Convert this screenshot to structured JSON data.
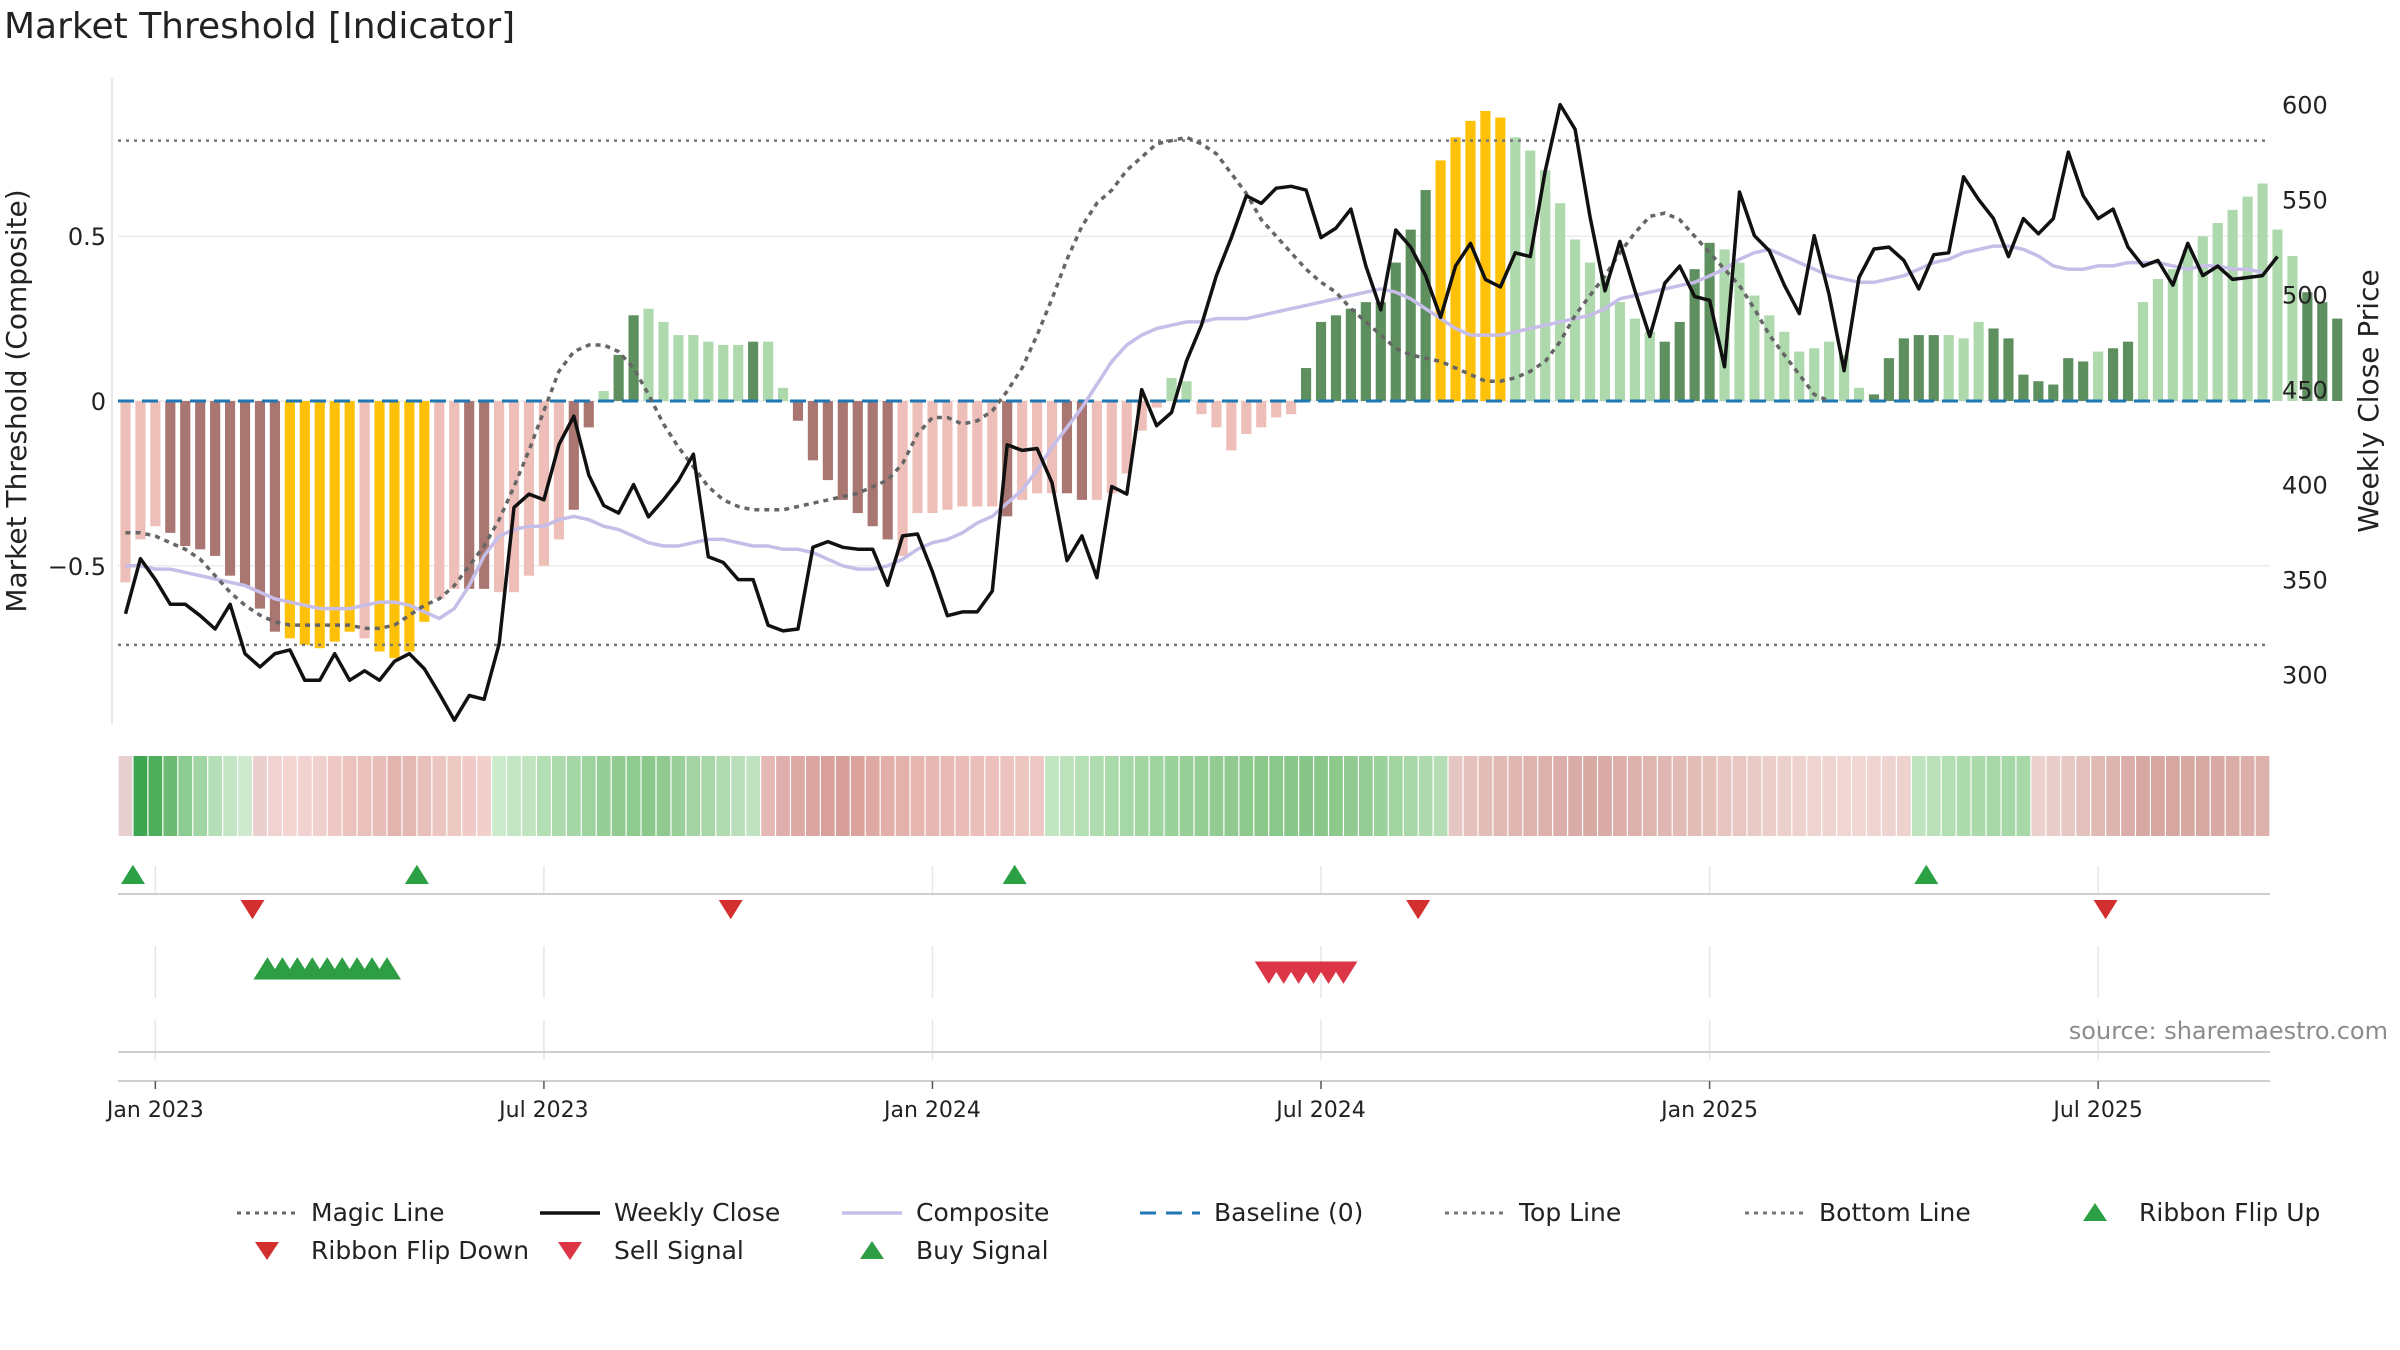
{
  "title": "Market Threshold [Indicator]",
  "source": "source: sharemaestro.com",
  "colors": {
    "bar_pos_dark": "#5e8f5e",
    "bar_pos_light": "#add9ad",
    "bar_neg_dark": "#a97671",
    "bar_neg_light": "#eebfb8",
    "bar_extreme": "#ffc107",
    "close": "#111111",
    "composite": "#c6bde8",
    "magic": "#666666",
    "baseline": "#1f77b4",
    "refline": "#777777",
    "flip_up": "#2ca045",
    "flip_down": "#d32f2f",
    "sell": "#dc3545",
    "buy": "#2e9e44"
  },
  "chart_data": {
    "type": "bar",
    "title": "Market Threshold [Indicator]",
    "ylabel": "Market Threshold (Composite)",
    "y2label": "Weekly Close Price",
    "ylim": [
      -0.98,
      0.98
    ],
    "y2lim": [
      274,
      614
    ],
    "yticks": [
      {
        "v": 0.5,
        "label": "0.5"
      },
      {
        "v": 0,
        "label": "0"
      },
      {
        "v": -0.5,
        "label": "−0.5"
      }
    ],
    "y2ticks": [
      300,
      350,
      400,
      450,
      500,
      550,
      600
    ],
    "top_line": 0.79,
    "bottom_line": -0.74,
    "xtick_labels": [
      {
        "w": 2,
        "label": "Jan 2023"
      },
      {
        "w": 28,
        "label": "Jul 2023"
      },
      {
        "w": 54,
        "label": "Jan 2024"
      },
      {
        "w": 80,
        "label": "Jul 2024"
      },
      {
        "w": 106,
        "label": "Jan 2025"
      },
      {
        "w": 132,
        "label": "Jul 2025"
      }
    ],
    "weeks": 144,
    "composite_bars": [
      -0.55,
      -0.42,
      -0.38,
      -0.4,
      -0.44,
      -0.45,
      -0.47,
      -0.53,
      -0.56,
      -0.63,
      -0.7,
      -0.72,
      -0.74,
      -0.75,
      -0.73,
      -0.7,
      -0.72,
      -0.76,
      -0.78,
      -0.76,
      -0.67,
      -0.6,
      -0.57,
      -0.57,
      -0.57,
      -0.58,
      -0.58,
      -0.53,
      -0.5,
      -0.42,
      -0.33,
      -0.08,
      0.03,
      0.14,
      0.26,
      0.28,
      0.24,
      0.2,
      0.2,
      0.18,
      0.17,
      0.17,
      0.18,
      0.18,
      0.04,
      -0.06,
      -0.18,
      -0.24,
      -0.3,
      -0.34,
      -0.38,
      -0.42,
      -0.47,
      -0.34,
      -0.34,
      -0.33,
      -0.32,
      -0.32,
      -0.32,
      -0.35,
      -0.3,
      -0.28,
      -0.28,
      -0.28,
      -0.3,
      -0.3,
      -0.28,
      -0.22,
      -0.09,
      -0.02,
      0.07,
      0.06,
      -0.04,
      -0.08,
      -0.15,
      -0.1,
      -0.08,
      -0.05,
      -0.04,
      0.1,
      0.24,
      0.26,
      0.28,
      0.3,
      0.3,
      0.42,
      0.52,
      0.64,
      0.73,
      0.8,
      0.85,
      0.88,
      0.86,
      0.8,
      0.76,
      0.7,
      0.6,
      0.49,
      0.42,
      0.38,
      0.3,
      0.25,
      0.21,
      0.18,
      0.24,
      0.4,
      0.48,
      0.46,
      0.42,
      0.32,
      0.26,
      0.21,
      0.15,
      0.16,
      0.18,
      0.14,
      0.04,
      0.02,
      0.13,
      0.19,
      0.2,
      0.2,
      0.2,
      0.19,
      0.24,
      0.22,
      0.19,
      0.08,
      0.06,
      0.05,
      0.13,
      0.12,
      0.15,
      0.16,
      0.18,
      0.3,
      0.37,
      0.4,
      0.46,
      0.5,
      0.54,
      0.58,
      0.62,
      0.66,
      0.52,
      0.44,
      0.33,
      0.3,
      0.25
    ],
    "bar_classes": "LLLDDDDDDDDYYYYYLYYYYLLDDLLLLLDDDGGLLLLLLLGLDDDDDDDDLLLLLLLDLLLDDLLLLLDLLLLLLGGGGGGGGGGGYYYYYLLLLLLLLLLGGGGLLLLLLLLLLGGGGGLLLGGGGGGGLGGLLLLLLLLLLLGGGGGGGGGLLLL",
    "weekly_close": [
      332,
      361,
      350,
      337,
      337,
      331,
      324,
      337,
      311,
      304,
      311,
      313,
      297,
      297,
      311,
      297,
      302,
      297,
      307,
      311,
      303,
      290,
      276,
      289,
      287,
      316,
      388,
      395,
      392,
      421,
      436,
      405,
      389,
      385,
      400,
      383,
      392,
      402,
      416,
      362,
      359,
      350,
      350,
      326,
      323,
      324,
      367,
      370,
      367,
      366,
      366,
      347,
      373,
      374,
      354,
      331,
      333,
      333,
      344,
      421,
      418,
      419,
      401,
      360,
      373,
      351,
      399,
      395,
      450,
      431,
      438,
      465,
      484,
      510,
      530,
      552,
      548,
      556,
      557,
      555,
      530,
      535,
      545,
      515,
      492,
      534,
      525,
      510,
      488,
      515,
      527,
      508,
      504,
      522,
      520,
      565,
      600,
      587,
      541,
      502,
      528,
      502,
      478,
      506,
      515,
      499,
      497,
      462,
      554,
      531,
      523,
      505,
      490,
      531,
      500,
      460,
      509,
      524,
      525,
      518,
      503,
      521,
      522,
      562,
      550,
      540,
      520,
      540,
      532,
      540,
      575,
      552,
      540,
      545,
      525,
      515,
      518,
      505,
      527,
      510,
      515,
      508,
      509,
      510,
      520
    ],
    "composite_line": [
      -0.5,
      -0.5,
      -0.51,
      -0.51,
      -0.52,
      -0.53,
      -0.54,
      -0.55,
      -0.56,
      -0.58,
      -0.6,
      -0.61,
      -0.62,
      -0.63,
      -0.63,
      -0.63,
      -0.62,
      -0.61,
      -0.61,
      -0.62,
      -0.64,
      -0.66,
      -0.63,
      -0.56,
      -0.47,
      -0.41,
      -0.39,
      -0.38,
      -0.38,
      -0.36,
      -0.35,
      -0.36,
      -0.38,
      -0.39,
      -0.41,
      -0.43,
      -0.44,
      -0.44,
      -0.43,
      -0.42,
      -0.42,
      -0.43,
      -0.44,
      -0.44,
      -0.45,
      -0.45,
      -0.46,
      -0.48,
      -0.5,
      -0.51,
      -0.51,
      -0.5,
      -0.48,
      -0.45,
      -0.43,
      -0.42,
      -0.4,
      -0.37,
      -0.35,
      -0.31,
      -0.27,
      -0.21,
      -0.14,
      -0.08,
      -0.02,
      0.05,
      0.12,
      0.17,
      0.2,
      0.22,
      0.23,
      0.24,
      0.24,
      0.25,
      0.25,
      0.25,
      0.26,
      0.27,
      0.28,
      0.29,
      0.3,
      0.31,
      0.32,
      0.33,
      0.34,
      0.33,
      0.31,
      0.28,
      0.25,
      0.22,
      0.2,
      0.2,
      0.2,
      0.21,
      0.22,
      0.23,
      0.24,
      0.25,
      0.26,
      0.28,
      0.31,
      0.32,
      0.33,
      0.34,
      0.35,
      0.36,
      0.38,
      0.4,
      0.43,
      0.45,
      0.46,
      0.44,
      0.42,
      0.4,
      0.38,
      0.37,
      0.36,
      0.36,
      0.37,
      0.38,
      0.4,
      0.42,
      0.43,
      0.45,
      0.46,
      0.47,
      0.47,
      0.46,
      0.44,
      0.41,
      0.4,
      0.4,
      0.41,
      0.41,
      0.42,
      0.42,
      0.42,
      0.41,
      0.4,
      0.41,
      0.41,
      0.4,
      0.4,
      0.39
    ],
    "magic_line": [
      -0.4,
      -0.4,
      -0.41,
      -0.43,
      -0.45,
      -0.48,
      -0.53,
      -0.58,
      -0.62,
      -0.65,
      -0.67,
      -0.68,
      -0.68,
      -0.68,
      -0.68,
      -0.68,
      -0.69,
      -0.69,
      -0.68,
      -0.65,
      -0.62,
      -0.6,
      -0.56,
      -0.5,
      -0.44,
      -0.36,
      -0.26,
      -0.15,
      -0.03,
      0.09,
      0.15,
      0.17,
      0.17,
      0.15,
      0.1,
      0.02,
      -0.07,
      -0.14,
      -0.2,
      -0.26,
      -0.3,
      -0.32,
      -0.33,
      -0.33,
      -0.33,
      -0.32,
      -0.31,
      -0.3,
      -0.29,
      -0.28,
      -0.26,
      -0.24,
      -0.19,
      -0.1,
      -0.05,
      -0.05,
      -0.07,
      -0.06,
      -0.03,
      0.03,
      0.1,
      0.2,
      0.31,
      0.43,
      0.53,
      0.6,
      0.64,
      0.7,
      0.74,
      0.78,
      0.79,
      0.8,
      0.78,
      0.75,
      0.69,
      0.63,
      0.55,
      0.5,
      0.45,
      0.4,
      0.36,
      0.33,
      0.28,
      0.24,
      0.2,
      0.16,
      0.14,
      0.13,
      0.12,
      0.1,
      0.08,
      0.06,
      0.06,
      0.07,
      0.09,
      0.12,
      0.18,
      0.26,
      0.32,
      0.38,
      0.45,
      0.51,
      0.56,
      0.57,
      0.55,
      0.5,
      0.45,
      0.4,
      0.35,
      0.28,
      0.2,
      0.14,
      0.08,
      0.02,
      0.0
    ],
    "ribbon_colors": [
      "#e8cfcf",
      "#3ea650",
      "#4fae5c",
      "#6cba74",
      "#8ccb91",
      "#a1d5a4",
      "#b5dfb7",
      "#c4e6c5",
      "#cfe9cf",
      "#e9d0cf",
      "#f2d2d0",
      "#f4d4d1",
      "#f2d2d0",
      "#f0d0cd",
      "#edc8c4",
      "#ebc2be",
      "#e9c0bc",
      "#e6bdb8",
      "#e2b4ae",
      "#e4b9b4",
      "#e7c0bb",
      "#ebc5c0",
      "#ecc8c3",
      "#efcac6",
      "#f1cfcb",
      "#ccebcc",
      "#c5e6c5",
      "#c0e4c0",
      "#b4deb4",
      "#acdaac",
      "#a5d6a5",
      "#9ed29e",
      "#97ce97",
      "#91cb91",
      "#8fca8f",
      "#8cc88c",
      "#90ca90",
      "#9acf9a",
      "#a3d3a3",
      "#a8d6a8",
      "#b1dab1",
      "#b9deb9",
      "#c1e2c1",
      "#e4b9b4",
      "#e0aeac",
      "#dda9a4",
      "#dba6a2",
      "#d9a09b",
      "#d89f9a",
      "#dca39d",
      "#dea8a3",
      "#e1aea8",
      "#e3b1ac",
      "#e6b5b0",
      "#e7b8b3",
      "#e8bab5",
      "#e9bcb7",
      "#eabebb",
      "#ebc0bd",
      "#ecc3bf",
      "#edc6c2",
      "#edc7c3",
      "#c1e5c1",
      "#bbe2bb",
      "#b5dfb5",
      "#afdcaf",
      "#aadaaa",
      "#a6d7a6",
      "#a2d5a2",
      "#9fd39f",
      "#9bd19b",
      "#98cf98",
      "#95cd95",
      "#93cc93",
      "#90ca90",
      "#8ec98e",
      "#8cc88c",
      "#8ac78a",
      "#89c689",
      "#88c588",
      "#8ac78a",
      "#8dc98d",
      "#91cb91",
      "#96cd96",
      "#9bd19b",
      "#a1d4a1",
      "#a8d7a8",
      "#afdaaf",
      "#b6deb6",
      "#e6c6c3",
      "#e4c1bd",
      "#e2bdb8",
      "#e1bab5",
      "#dfb6b1",
      "#deb3ae",
      "#dcb1ac",
      "#dbaea9",
      "#daaca7",
      "#d9a9a4",
      "#daaba6",
      "#dcafaa",
      "#ddb2ad",
      "#dfb5b0",
      "#e0b8b3",
      "#e2bbb6",
      "#e3beb9",
      "#e5c1bc",
      "#e6c4bf",
      "#e8c7c3",
      "#e9cac6",
      "#ebcdc9",
      "#ecd0cc",
      "#edd2ce",
      "#eed4d0",
      "#efd5d2",
      "#f0d7d4",
      "#f0d7d4",
      "#efd5d2",
      "#eed4d0",
      "#edd2ce",
      "#bfe3bf",
      "#b9e0b9",
      "#b3ddb3",
      "#aedbae",
      "#aad9aa",
      "#a8d7a8",
      "#a6d7a6",
      "#a8d7a8",
      "#ead1ce",
      "#e8ccc9",
      "#e6c8c4",
      "#e3c2be",
      "#e0bbb6",
      "#ddb4ae",
      "#dbaea9",
      "#d8a9a3",
      "#d7a6a0",
      "#d7a6a0",
      "#d7a7a1",
      "#d8a9a3",
      "#d9aaa5",
      "#dbada7",
      "#dcafaa",
      "#ddb1ac"
    ],
    "ribbon_flip_up_weeks": [
      1,
      20,
      60,
      121
    ],
    "ribbon_flip_down_weeks": [
      9,
      41,
      87,
      133
    ],
    "buy_signal_weeks": [
      10,
      11,
      12,
      13,
      14,
      15,
      16,
      17,
      18
    ],
    "sell_signal_weeks": [
      77,
      78,
      79,
      80,
      81,
      82
    ],
    "legend": [
      {
        "label": "Magic Line",
        "kind": "dotted",
        "color": "#666666"
      },
      {
        "label": "Weekly Close",
        "kind": "solid",
        "color": "#111111"
      },
      {
        "label": "Composite",
        "kind": "solid",
        "color": "#c6bde8"
      },
      {
        "label": "Baseline (0)",
        "kind": "dashed",
        "color": "#1f77b4"
      },
      {
        "label": "Top Line",
        "kind": "dotted",
        "color": "#777777"
      },
      {
        "label": "Bottom Line",
        "kind": "dotted",
        "color": "#777777"
      },
      {
        "label": "Ribbon Flip Up",
        "kind": "tri-up",
        "color": "#2ca045"
      },
      {
        "label": "Ribbon Flip Down",
        "kind": "tri-down",
        "color": "#d32f2f"
      },
      {
        "label": "Sell Signal",
        "kind": "tri-down",
        "color": "#dc3545"
      },
      {
        "label": "Buy Signal",
        "kind": "tri-up",
        "color": "#2e9e44"
      }
    ]
  }
}
